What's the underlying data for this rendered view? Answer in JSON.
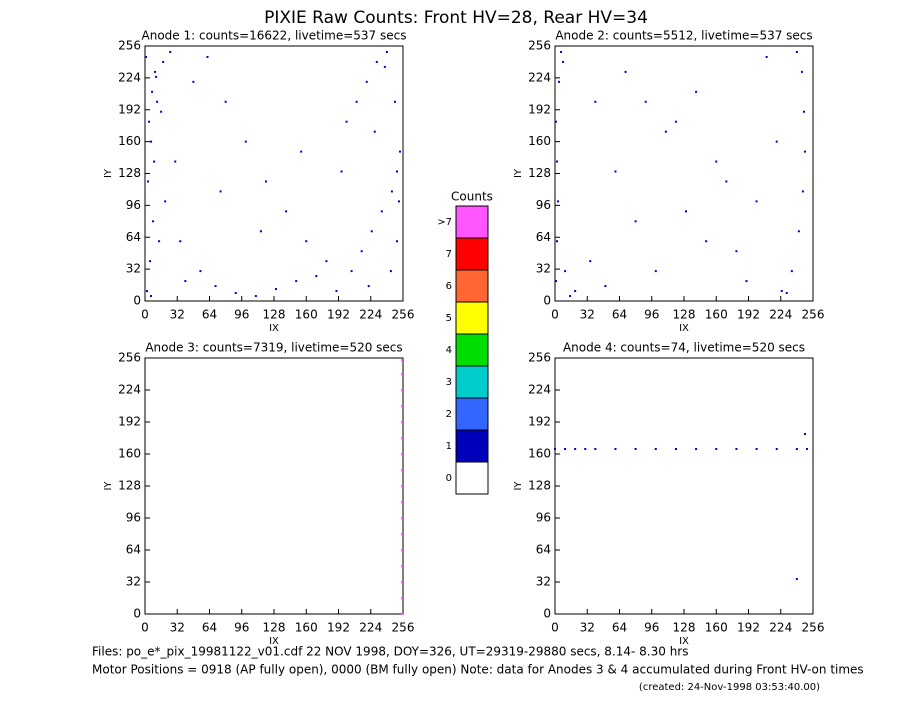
{
  "title": "PIXIE Raw Counts:  Front HV=28, Rear HV=34",
  "colorbar": {
    "title": "Counts",
    "labels": [
      ">7",
      "7",
      "6",
      "5",
      "4",
      "3",
      "2",
      "1",
      "0"
    ],
    "colors": [
      "#ff55ff",
      "#ff0000",
      "#ff6633",
      "#ffff00",
      "#00dd00",
      "#00cccc",
      "#3366ff",
      "#0000bb",
      "#ffffff"
    ]
  },
  "footer": [
    "Files: po_e*_pix_19981122_v01.cdf   22 NOV 1998, DOY=326, UT=29319-29880 secs,  8.14- 8.30 hrs",
    "Motor Positions = 0918 (AP fully open), 0000 (BM fully open)    Note: data for Anodes 3 & 4 accumulated during Front HV-on times",
    "(created: 24-Nov-1998 03:53:40.00)"
  ],
  "chart_data": [
    {
      "type": "scatter",
      "title": "Anode 1: counts=16622, livetime=537 secs",
      "xlabel": "IX",
      "ylabel": "IY",
      "xlim": [
        0,
        256
      ],
      "ylim": [
        0,
        256
      ],
      "xticks": [
        0,
        32,
        64,
        96,
        128,
        160,
        192,
        224,
        256
      ],
      "yticks": [
        0,
        32,
        64,
        96,
        128,
        160,
        192,
        224,
        256
      ],
      "color": "#0000cc",
      "x": [
        2,
        5,
        8,
        3,
        6,
        12,
        18,
        25,
        40,
        55,
        70,
        90,
        110,
        130,
        150,
        170,
        190,
        205,
        215,
        225,
        235,
        245,
        250,
        253,
        4,
        7,
        10,
        14,
        20,
        30,
        48,
        62,
        80,
        100,
        120,
        140,
        160,
        180,
        200,
        210,
        220,
        230,
        240,
        248,
        252,
        1,
        9,
        16,
        35,
        75,
        115,
        155,
        195,
        228,
        244,
        250,
        6,
        11,
        222,
        238
      ],
      "y": [
        10,
        40,
        80,
        120,
        160,
        200,
        240,
        250,
        20,
        30,
        15,
        8,
        5,
        12,
        20,
        25,
        10,
        30,
        50,
        70,
        90,
        110,
        130,
        150,
        180,
        210,
        230,
        60,
        100,
        140,
        220,
        245,
        200,
        160,
        120,
        90,
        60,
        40,
        180,
        200,
        220,
        240,
        250,
        200,
        100,
        245,
        140,
        190,
        60,
        110,
        70,
        150,
        130,
        170,
        30,
        60,
        5,
        225,
        15,
        235
      ]
    },
    {
      "type": "scatter",
      "title": "Anode 2: counts=5512, livetime=537 secs",
      "xlabel": "IX",
      "ylabel": "IY",
      "xlim": [
        0,
        256
      ],
      "ylim": [
        0,
        256
      ],
      "xticks": [
        0,
        32,
        64,
        96,
        128,
        160,
        192,
        224,
        256
      ],
      "yticks": [
        0,
        32,
        64,
        96,
        128,
        160,
        192,
        224,
        256
      ],
      "color": "#0000cc",
      "x": [
        1,
        2,
        3,
        2,
        1,
        4,
        6,
        10,
        20,
        35,
        50,
        70,
        90,
        110,
        130,
        150,
        170,
        190,
        210,
        225,
        235,
        242,
        246,
        248,
        247,
        245,
        240,
        230,
        200,
        160,
        120,
        80,
        40,
        15,
        8,
        60,
        100,
        140,
        180,
        220
      ],
      "y": [
        20,
        60,
        100,
        140,
        180,
        220,
        250,
        30,
        10,
        40,
        15,
        230,
        200,
        170,
        90,
        60,
        120,
        20,
        245,
        10,
        30,
        70,
        110,
        150,
        190,
        230,
        250,
        8,
        100,
        140,
        180,
        80,
        200,
        5,
        240,
        130,
        30,
        210,
        50,
        160
      ]
    },
    {
      "type": "scatter",
      "title": "Anode 3: counts=7319, livetime=520 secs",
      "xlabel": "IX",
      "ylabel": "IY",
      "xlim": [
        0,
        256
      ],
      "ylim": [
        0,
        256
      ],
      "xticks": [
        0,
        32,
        64,
        96,
        128,
        160,
        192,
        224,
        256
      ],
      "yticks": [
        0,
        32,
        64,
        96,
        128,
        160,
        192,
        224,
        256
      ],
      "color": "#ff55ff",
      "x": [
        255,
        255,
        255,
        255,
        255,
        255,
        255,
        255,
        255,
        255,
        255,
        255,
        255,
        255,
        255,
        255,
        255
      ],
      "y": [
        0,
        16,
        32,
        48,
        64,
        80,
        96,
        112,
        128,
        144,
        160,
        176,
        192,
        208,
        224,
        240,
        254
      ]
    },
    {
      "type": "scatter",
      "title": "Anode 4: counts=74, livetime=520 secs",
      "xlabel": "IX",
      "ylabel": "IY",
      "xlim": [
        0,
        256
      ],
      "ylim": [
        0,
        256
      ],
      "xticks": [
        0,
        32,
        64,
        96,
        128,
        160,
        192,
        224,
        256
      ],
      "yticks": [
        0,
        32,
        64,
        96,
        128,
        160,
        192,
        224,
        256
      ],
      "color": "#0000cc",
      "x": [
        0,
        10,
        20,
        30,
        40,
        60,
        80,
        100,
        120,
        140,
        160,
        180,
        200,
        220,
        240,
        250,
        240,
        248
      ],
      "y": [
        165,
        165,
        165,
        165,
        165,
        165,
        165,
        165,
        165,
        165,
        165,
        165,
        165,
        165,
        165,
        165,
        35,
        180
      ]
    }
  ]
}
